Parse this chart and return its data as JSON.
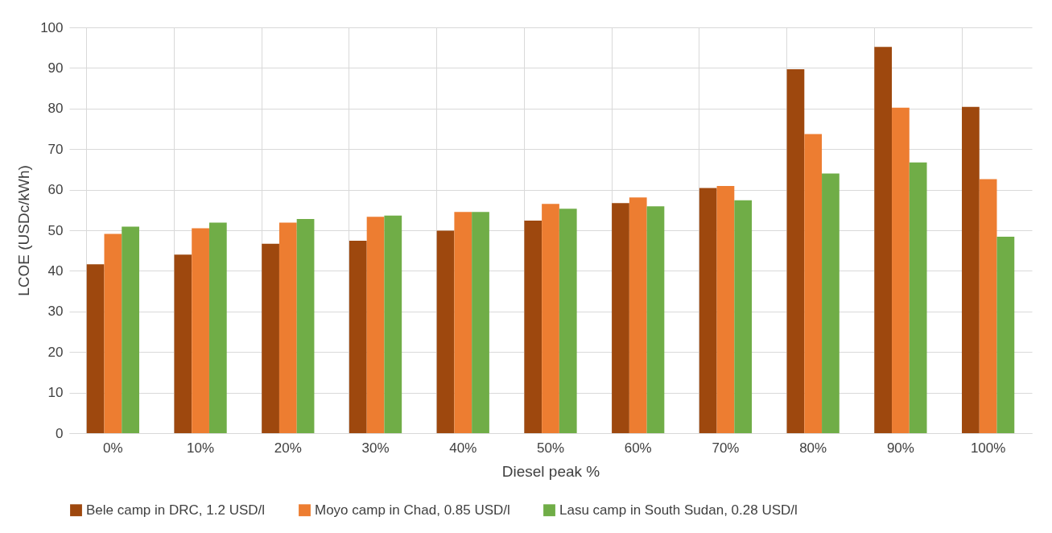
{
  "chart_data": {
    "type": "bar",
    "xlabel": "Diesel peak %",
    "ylabel": "LCOE (USDc/kWh)",
    "categories": [
      "0%",
      "10%",
      "20%",
      "30%",
      "40%",
      "50%",
      "60%",
      "70%",
      "80%",
      "90%",
      "100%"
    ],
    "series": [
      {
        "name": "Bele camp in DRC, 1.2 USD/l",
        "color": "#9e480e",
        "values": [
          41.6,
          44,
          46.7,
          47.4,
          49.9,
          52.4,
          56.7,
          60.4,
          89.7,
          95.2,
          80.4
        ]
      },
      {
        "name": "Moyo camp in Chad, 0.85 USD/l",
        "color": "#ed7d31",
        "values": [
          49.1,
          50.5,
          51.9,
          53.3,
          54.5,
          56.5,
          58.1,
          60.9,
          73.7,
          80.2,
          62.6
        ]
      },
      {
        "name": "Lasu camp in South Sudan, 0.28 USD/l",
        "color": "#70ad47",
        "values": [
          50.9,
          51.9,
          52.8,
          53.6,
          54.5,
          55.3,
          55.9,
          57.4,
          64,
          66.7,
          48.4
        ]
      }
    ],
    "ylim": [
      0,
      100
    ],
    "yticks": [
      0,
      10,
      20,
      30,
      40,
      50,
      60,
      70,
      80,
      90,
      100
    ],
    "grid": true,
    "legend": "bottom"
  }
}
